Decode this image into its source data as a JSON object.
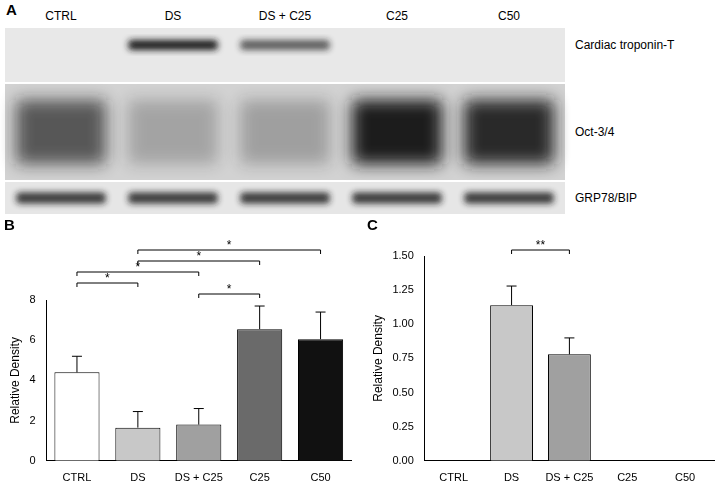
{
  "blot": {
    "title": "A",
    "lanes": [
      "CTRL",
      "DS",
      "DS + C25",
      "C25",
      "C50"
    ],
    "bands": [
      "Cardiac troponin-T",
      "Oct-3/4",
      "GRP78/BIP"
    ]
  },
  "chart_data": [
    {
      "type": "bar",
      "title": "B",
      "categories": [
        "CTRL",
        "DS",
        "DS + C25",
        "C25",
        "C50"
      ],
      "values": [
        4.4,
        1.65,
        1.8,
        6.55,
        6.05
      ],
      "errors": [
        0.8,
        0.8,
        0.8,
        1.15,
        1.35
      ],
      "colors": [
        "#ffffff",
        "#c8c8c8",
        "#a0a0a0",
        "#6a6a6a",
        "#111111"
      ],
      "y_label": "Relative Density",
      "ylim": [
        0,
        8
      ],
      "yticks": [
        0,
        2,
        4,
        6,
        8
      ],
      "grid": false,
      "annotations": [
        {
          "from": "DS + C25",
          "to": "C25",
          "label": "*"
        },
        {
          "from": "CTRL",
          "to": "DS",
          "label": "*"
        },
        {
          "from": "CTRL",
          "to": "DS + C25",
          "label": "*"
        },
        {
          "from": "DS",
          "to": "C25",
          "label": "*"
        },
        {
          "from": "DS",
          "to": "C50",
          "label": "*"
        }
      ]
    },
    {
      "type": "bar",
      "title": "C",
      "categories": [
        "CTRL",
        "DS",
        "DS + C25",
        "C25",
        "C50"
      ],
      "values": [
        0,
        1.14,
        0.78,
        0,
        0
      ],
      "errors": [
        0,
        0.14,
        0.12,
        0,
        0
      ],
      "colors": [
        "#ffffff",
        "#c8c8c8",
        "#a0a0a0",
        "#6a6a6a",
        "#111111"
      ],
      "y_label": "Relative Density",
      "ylim": [
        0,
        1.5
      ],
      "yticks": [
        {
          "value": 0,
          "label": "0.00"
        },
        {
          "value": 0.25,
          "label": "0.25"
        },
        {
          "value": 0.5,
          "label": "0.50"
        },
        {
          "value": 0.75,
          "label": "0.75"
        },
        {
          "value": 1,
          "label": "1.00"
        },
        {
          "value": 1.25,
          "label": "1.25"
        },
        {
          "value": 1.5,
          "label": "1.50"
        }
      ],
      "grid": false,
      "annotations": [
        {
          "from": "DS",
          "to": "DS + C25",
          "label": "**"
        }
      ]
    }
  ]
}
